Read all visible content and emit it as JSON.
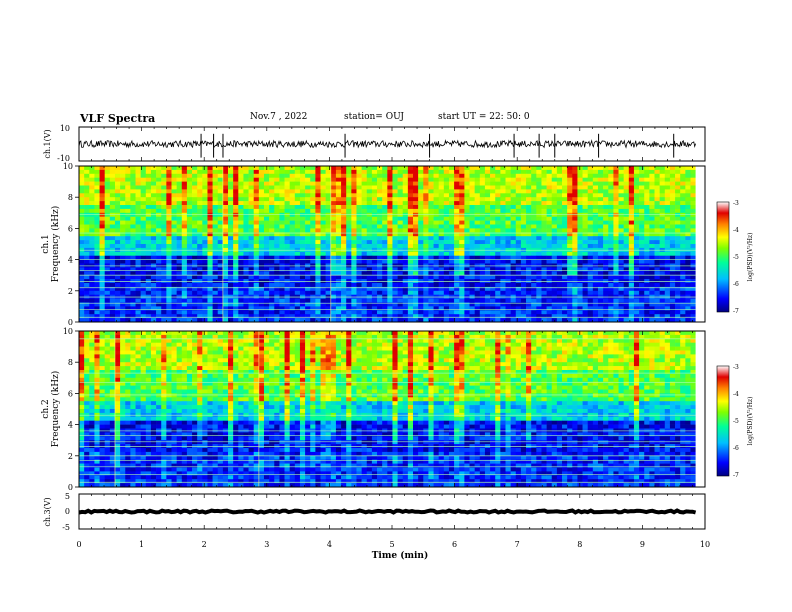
{
  "header": {
    "title": "VLF Spectra",
    "date": "Nov.7  , 2022",
    "station": "station= OUJ",
    "start_ut": "start  UT  =   22: 50: 0"
  },
  "colors": {
    "colormap": [
      "#000080",
      "#0000ff",
      "#00bfff",
      "#00ff99",
      "#80ff00",
      "#ffff00",
      "#ff8000",
      "#e00000",
      "#ffffff"
    ]
  },
  "chart_data": [
    {
      "id": "ch1-waveform",
      "type": "line",
      "ylabel": "ch.1(V)",
      "ylim": [
        -10,
        10
      ],
      "yticks": [
        "10",
        "-10"
      ],
      "xlim": [
        0,
        10
      ],
      "baseline": 0,
      "noise_amplitude": 2,
      "spike_times": [
        1.95,
        2.15,
        2.3,
        4.25,
        5.6,
        6.95,
        7.35,
        7.6,
        8.3,
        9.5
      ]
    },
    {
      "id": "ch1-spectrogram",
      "type": "heatmap",
      "ylabel": "Frequency  (kHz)",
      "ylabel_prefix": "ch.1",
      "ylim": [
        0,
        10
      ],
      "yticks": [
        "0",
        "2",
        "4",
        "6",
        "8",
        "10"
      ],
      "xlim": [
        0,
        9.85
      ],
      "colorbar": {
        "label": "log(PSD)(V²/Hz)",
        "range": [
          -7,
          -3
        ],
        "ticks": [
          "-3",
          "-4",
          "-5",
          "-6",
          "-7"
        ]
      },
      "bands_khz": [
        0.3,
        0.8,
        1.2,
        1.6,
        2.2,
        2.6,
        3.0,
        3.3,
        3.6,
        4.0,
        4.6,
        5.7,
        6.9
      ]
    },
    {
      "id": "ch2-spectrogram",
      "type": "heatmap",
      "ylabel": "Frequency  (kHz)",
      "ylabel_prefix": "ch.2",
      "ylim": [
        0,
        10
      ],
      "yticks": [
        "0",
        "2",
        "4",
        "6",
        "8",
        "10"
      ],
      "xlim": [
        0,
        9.85
      ],
      "colorbar": {
        "label": "log(PSD)(V²/Hz)",
        "range": [
          -7,
          -3
        ],
        "ticks": [
          "-3",
          "-4",
          "-5",
          "-6",
          "-7"
        ]
      },
      "bands_khz": [
        0.3,
        0.8,
        1.3,
        1.7,
        2.0,
        2.6,
        2.9,
        3.3,
        3.6,
        4.6,
        5.9,
        6.7,
        7.3,
        9.5
      ]
    },
    {
      "id": "ch3-waveform",
      "type": "line",
      "ylabel": "ch.3(V)",
      "ylim": [
        -5,
        5
      ],
      "yticks": [
        "5",
        "0",
        "-5"
      ],
      "xlim": [
        0,
        10
      ],
      "baseline": 0,
      "noise_amplitude": 0.3
    }
  ],
  "xaxis": {
    "label": "Time  (min)",
    "ticks": [
      "0",
      "1",
      "2",
      "3",
      "4",
      "5",
      "6",
      "7",
      "8",
      "9",
      "10"
    ]
  }
}
